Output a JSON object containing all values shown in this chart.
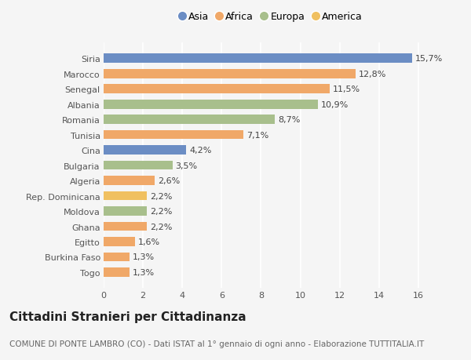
{
  "categories": [
    "Togo",
    "Burkina Faso",
    "Egitto",
    "Ghana",
    "Moldova",
    "Rep. Dominicana",
    "Algeria",
    "Bulgaria",
    "Cina",
    "Tunisia",
    "Romania",
    "Albania",
    "Senegal",
    "Marocco",
    "Siria"
  ],
  "values": [
    1.3,
    1.3,
    1.6,
    2.2,
    2.2,
    2.2,
    2.6,
    3.5,
    4.2,
    7.1,
    8.7,
    10.9,
    11.5,
    12.8,
    15.7
  ],
  "labels": [
    "1,3%",
    "1,3%",
    "1,6%",
    "2,2%",
    "2,2%",
    "2,2%",
    "2,6%",
    "3,5%",
    "4,2%",
    "7,1%",
    "8,7%",
    "10,9%",
    "11,5%",
    "12,8%",
    "15,7%"
  ],
  "colors": [
    "#f0a868",
    "#f0a868",
    "#f0a868",
    "#f0a868",
    "#a8bf8c",
    "#f0c060",
    "#f0a868",
    "#a8bf8c",
    "#6b8dc4",
    "#f0a868",
    "#a8bf8c",
    "#a8bf8c",
    "#f0a868",
    "#f0a868",
    "#6b8dc4"
  ],
  "legend": [
    {
      "label": "Asia",
      "color": "#6b8dc4"
    },
    {
      "label": "Africa",
      "color": "#f0a868"
    },
    {
      "label": "Europa",
      "color": "#a8bf8c"
    },
    {
      "label": "America",
      "color": "#f0c060"
    }
  ],
  "xlim": [
    0,
    17
  ],
  "xticks": [
    0,
    2,
    4,
    6,
    8,
    10,
    12,
    14,
    16
  ],
  "title": "Cittadini Stranieri per Cittadinanza",
  "subtitle": "COMUNE DI PONTE LAMBRO (CO) - Dati ISTAT al 1° gennaio di ogni anno - Elaborazione TUTTITALIA.IT",
  "background_color": "#f5f5f5",
  "bar_height": 0.6,
  "title_fontsize": 11,
  "subtitle_fontsize": 7.5,
  "label_fontsize": 8,
  "tick_fontsize": 8,
  "legend_fontsize": 9
}
